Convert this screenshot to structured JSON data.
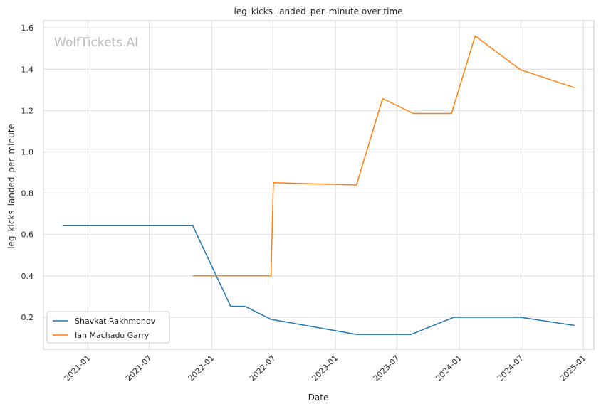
{
  "chart_data": {
    "type": "line",
    "title": "leg_kicks_landed_per_minute over time",
    "xlabel": "Date",
    "ylabel": "leg_kicks_landed_per_minute",
    "watermark": "WolfTickets.AI",
    "x_ticks": [
      "2021-01",
      "2021-07",
      "2022-01",
      "2022-07",
      "2023-01",
      "2023-07",
      "2024-01",
      "2024-07",
      "2025-01"
    ],
    "y_ticks": [
      "0.2",
      "0.4",
      "0.6",
      "0.8",
      "1.0",
      "1.2",
      "1.4",
      "1.6"
    ],
    "xlim": [
      "2020-08-23",
      "2025-02-01"
    ],
    "ylim": [
      0.045,
      1.635
    ],
    "grid": true,
    "legend_position": "lower-left",
    "series": [
      {
        "name": "Shavkat Rakhmonov",
        "color": "#1f77b4",
        "x": [
          "2020-10-18",
          "2021-11-06",
          "2022-02-26",
          "2022-04-09",
          "2022-06-25",
          "2023-03-04",
          "2023-08-12",
          "2023-12-16",
          "2024-06-29",
          "2024-12-07"
        ],
        "y": [
          0.643,
          0.643,
          0.253,
          0.253,
          0.19,
          0.117,
          0.117,
          0.2,
          0.2,
          0.16
        ]
      },
      {
        "name": "Ian Machado Garry",
        "color": "#ff7f0e",
        "x": [
          "2021-11-06",
          "2022-06-25",
          "2022-07-02",
          "2023-03-04",
          "2023-05-20",
          "2023-08-19",
          "2023-12-09",
          "2024-02-17",
          "2024-06-29",
          "2024-12-07"
        ],
        "y": [
          0.4,
          0.4,
          0.851,
          0.84,
          1.258,
          1.186,
          1.186,
          1.561,
          1.398,
          1.31
        ]
      }
    ]
  }
}
